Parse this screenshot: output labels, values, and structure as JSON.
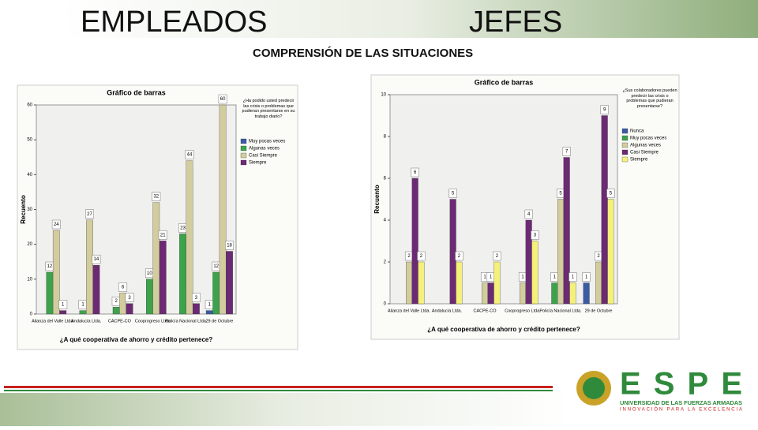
{
  "header": {
    "left": "EMPLEADOS",
    "right": "JEFES",
    "subtitle": "COMPRENSIÓN DE LAS SITUACIONES"
  },
  "logo": {
    "name": "ESPE",
    "line1": "UNIVERSIDAD DE LAS FUERZAS ARMADAS",
    "line2": "INNOVACIÓN PARA LA EXCELENCIA"
  },
  "chart_data": [
    {
      "type": "bar",
      "title": "Gráfico de barras",
      "y_label": "Recuento",
      "x_label": "¿A qué cooperativa de ahorro y crédito pertenece?",
      "legend_title": "¿Ha podido usted predecir las crisis o problemas que pudieran presentarse en su trabajo diario?",
      "categories": [
        "Alianza del Valle Ltda.",
        "Andalucía Ltda.",
        "CACPE-CO",
        "Cooprogreso Ltda.",
        "Policía Nacional Ltda.",
        "29 de Octubre"
      ],
      "series": [
        {
          "name": "Muy pocas veces",
          "color": "#3b5ba5",
          "values": [
            null,
            null,
            null,
            null,
            null,
            1
          ]
        },
        {
          "name": "Algunas veces",
          "color": "#3da24c",
          "values": [
            12,
            1,
            2,
            10,
            23,
            12
          ]
        },
        {
          "name": "Casi Siempre",
          "color": "#d2cc9e",
          "values": [
            24,
            27,
            6,
            32,
            44,
            60
          ]
        },
        {
          "name": "Siempre",
          "color": "#6b2a73",
          "values": [
            1,
            14,
            3,
            21,
            3,
            18
          ]
        }
      ],
      "ylim": [
        0,
        60
      ],
      "yticks": [
        0,
        10,
        20,
        30,
        40,
        50,
        60
      ]
    },
    {
      "type": "bar",
      "title": "Gráfico de barras",
      "y_label": "Recuento",
      "x_label": "¿A qué cooperativa de ahorro y crédito pertenece?",
      "legend_title": "¿Sus colaboradores pueden predecir las crisis o problemas que pudieran presentarse?",
      "categories": [
        "Alianza del Valle Ltda.",
        "Andalucía Ltda.",
        "CACPE-CO",
        "Cooprogreso Ltda.",
        "Policía Nacional Ltda.",
        "29 de Octubre"
      ],
      "series": [
        {
          "name": "Nunca",
          "color": "#3b5ba5",
          "values": [
            null,
            null,
            null,
            null,
            null,
            1
          ]
        },
        {
          "name": "Muy pocas veces",
          "color": "#3da24c",
          "values": [
            null,
            null,
            null,
            null,
            1,
            null
          ]
        },
        {
          "name": "Algunas veces",
          "color": "#d2cc9e",
          "values": [
            2,
            null,
            1,
            1,
            5,
            2
          ]
        },
        {
          "name": "Casi Siempre",
          "color": "#6b2a73",
          "values": [
            6,
            5,
            1,
            4,
            7,
            9
          ]
        },
        {
          "name": "Siempre",
          "color": "#f4f07a",
          "values": [
            2,
            2,
            2,
            3,
            1,
            5
          ]
        }
      ],
      "ylim": [
        0,
        10
      ],
      "yticks": [
        0,
        2,
        4,
        6,
        8,
        10
      ]
    }
  ]
}
